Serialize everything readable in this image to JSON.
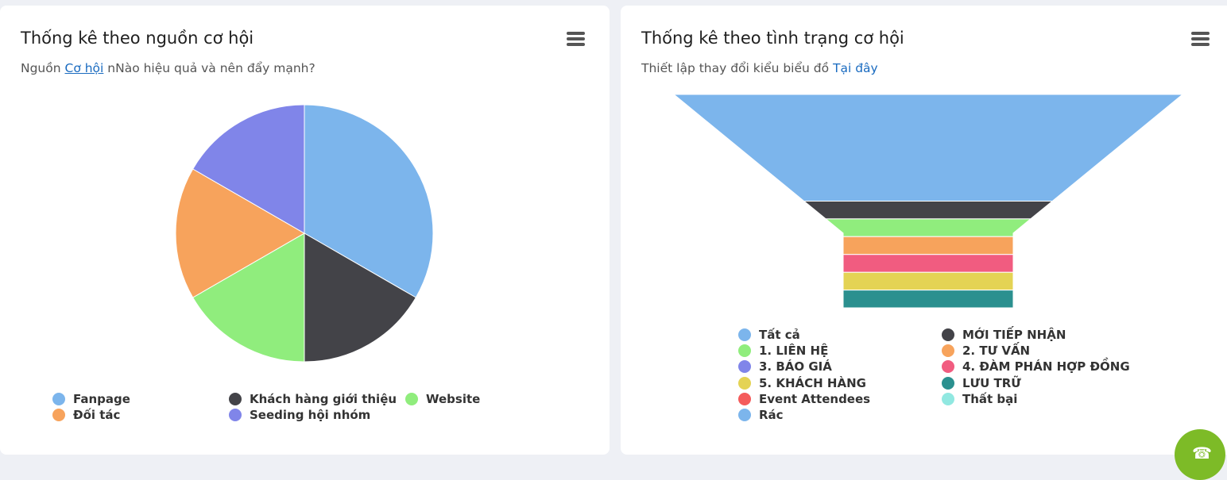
{
  "left_card": {
    "title": "Thống kê theo nguồn cơ hội",
    "subtitle_prefix": "Nguồn ",
    "subtitle_link": "Cơ hội",
    "subtitle_suffix": " nNào hiệu quả và nên đẩy mạnh?"
  },
  "right_card": {
    "title": "Thống kê theo tình trạng cơ hội",
    "subtitle_prefix": "Thiết lập thay đổi kiểu biểu đồ ",
    "subtitle_link": "Tại đây"
  },
  "icons": {
    "menu": "hamburger-menu-icon",
    "fab": "phone-icon"
  },
  "fab_color": "#7dbb27",
  "chart_data": [
    {
      "type": "pie",
      "title": "",
      "legend_position": "bottom",
      "slices": [
        {
          "name": "Fanpage",
          "value": 2,
          "color": "#7cb5ec"
        },
        {
          "name": "Khách hàng giới thiệu",
          "value": 1,
          "color": "#434348"
        },
        {
          "name": "Website",
          "value": 1,
          "color": "#90ed7d"
        },
        {
          "name": "Đối tác",
          "value": 1,
          "color": "#f7a35c"
        },
        {
          "name": "Seeding hội nhóm",
          "value": 1,
          "color": "#8085e9"
        }
      ]
    },
    {
      "type": "funnel",
      "title": "",
      "legend_position": "bottom",
      "stages": [
        {
          "name": "Tất cả",
          "value": 6,
          "color": "#7cb5ec"
        },
        {
          "name": "MỚI TIẾP NHẬN",
          "value": 1,
          "color": "#434348"
        },
        {
          "name": "1. LIÊN HỆ",
          "value": 1,
          "color": "#90ed7d"
        },
        {
          "name": "2. TƯ VẤN",
          "value": 1,
          "color": "#f7a35c"
        },
        {
          "name": "3. BÁO GIÁ",
          "value": 0,
          "color": "#8085e9"
        },
        {
          "name": "4. ĐÀM PHÁN HỢP ĐỒNG",
          "value": 1,
          "color": "#f15c80"
        },
        {
          "name": "5. KHÁCH HÀNG",
          "value": 1,
          "color": "#e4d354"
        },
        {
          "name": "LƯU TRỮ",
          "value": 1,
          "color": "#2b908f"
        },
        {
          "name": "Event Attendees",
          "value": 0,
          "color": "#f45b5b"
        },
        {
          "name": "Thất bại",
          "value": 0,
          "color": "#91e8e1"
        },
        {
          "name": "Rác",
          "value": 0,
          "color": "#7cb5ec"
        }
      ]
    }
  ]
}
